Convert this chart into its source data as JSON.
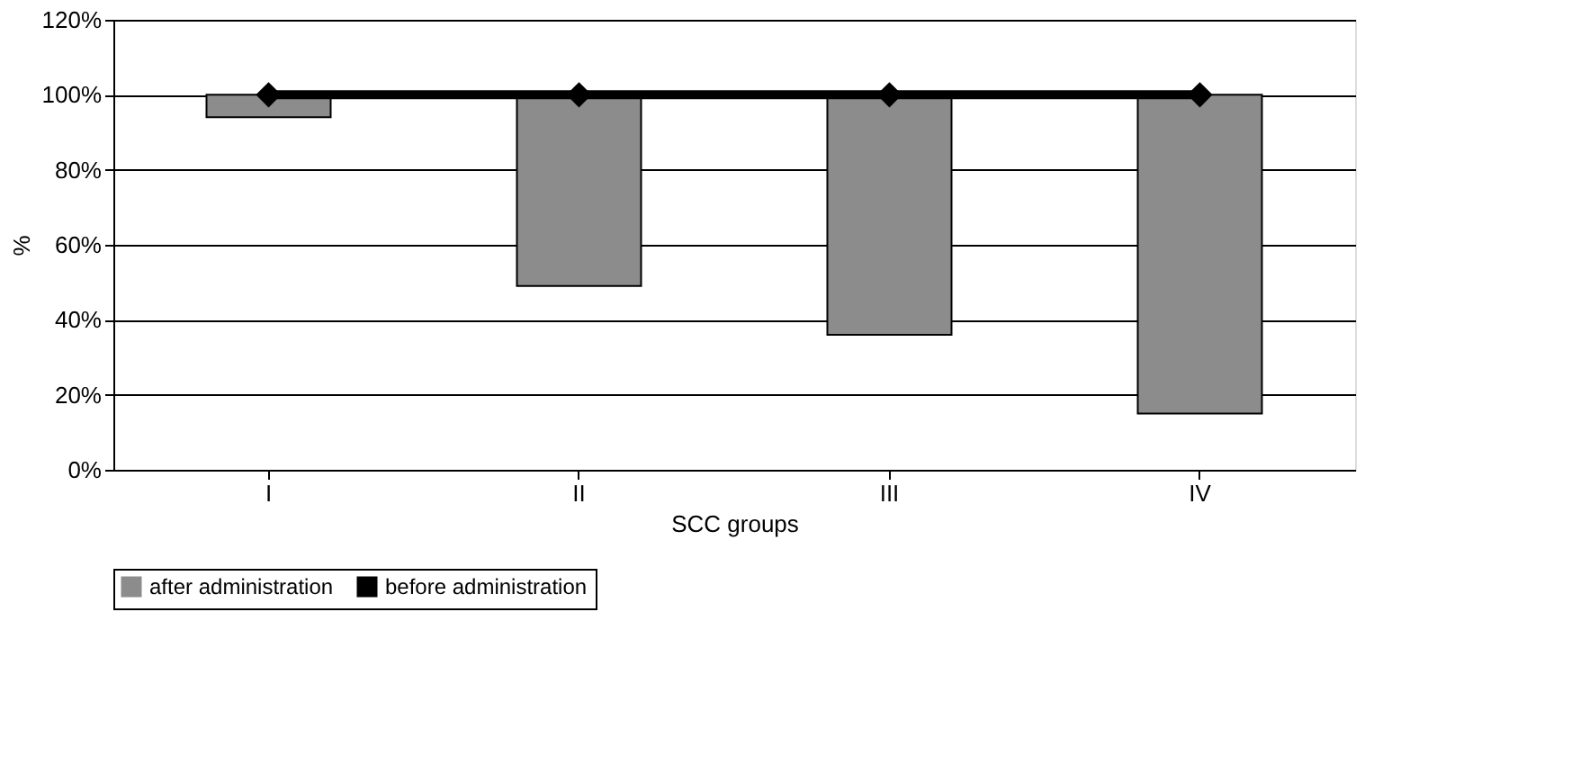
{
  "chart_data": {
    "type": "bar",
    "xlabel": "SCC groups",
    "ylabel": "%",
    "categories": [
      "I",
      "II",
      "III",
      "IV"
    ],
    "series": [
      {
        "name": "after administration",
        "color": "#8c8c8c",
        "values": [
          6,
          51,
          64,
          85
        ],
        "base": [
          94,
          49,
          36,
          15
        ]
      },
      {
        "name": "before administration",
        "type": "line",
        "color": "#000000",
        "values": [
          100,
          100,
          100,
          100
        ],
        "marker": "diamond",
        "line_style": "solid"
      }
    ],
    "ylim": [
      0,
      120
    ],
    "yticks": [
      {
        "value": 0,
        "label": "0%"
      },
      {
        "value": 20,
        "label": "20%"
      },
      {
        "value": 40,
        "label": "40%"
      },
      {
        "value": 60,
        "label": "60%"
      },
      {
        "value": 80,
        "label": "80%"
      },
      {
        "value": 100,
        "label": "100%"
      },
      {
        "value": 120,
        "label": "120%"
      }
    ],
    "grid": "y",
    "legend": "bottom"
  }
}
